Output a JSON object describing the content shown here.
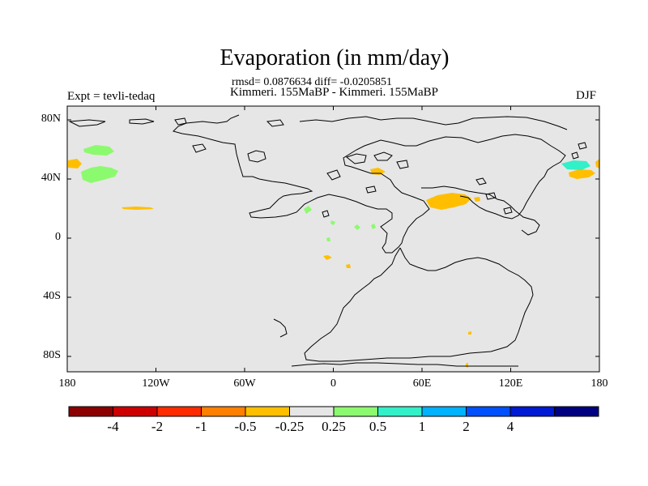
{
  "title": "Evaporation (in mm/day)",
  "stats": "rmsd= 0.0876634 diff= -0.0205851",
  "experiments": "Kimmeri. 155MaBP - Kimmeri. 155MaBP",
  "expt_label": "Expt = tevli-tedaq",
  "season": "DJF",
  "lat_labels": [
    "80N",
    "40N",
    "0",
    "40S",
    "80S"
  ],
  "lon_labels": [
    "180",
    "120W",
    "60W",
    "0",
    "60E",
    "120E",
    "180"
  ],
  "colorbar": {
    "colors": [
      "#8b0000",
      "#cd0000",
      "#ff2b00",
      "#ff7f00",
      "#ffbf00",
      "#e6e6e6",
      "#8cfa6e",
      "#32f0c8",
      "#00b2ff",
      "#0050ff",
      "#0019d2",
      "#000080"
    ],
    "labels": [
      "-4",
      "-2",
      "-1",
      "-0.5",
      "-0.25",
      "0.25",
      "0.5",
      "1",
      "2",
      "4"
    ]
  },
  "colors": {
    "background": "#e6e6e6",
    "positive_small": "#8cfa6e",
    "positive_medium": "#32f0c8",
    "negative_small": "#ffbf00",
    "coast": "#000000"
  }
}
